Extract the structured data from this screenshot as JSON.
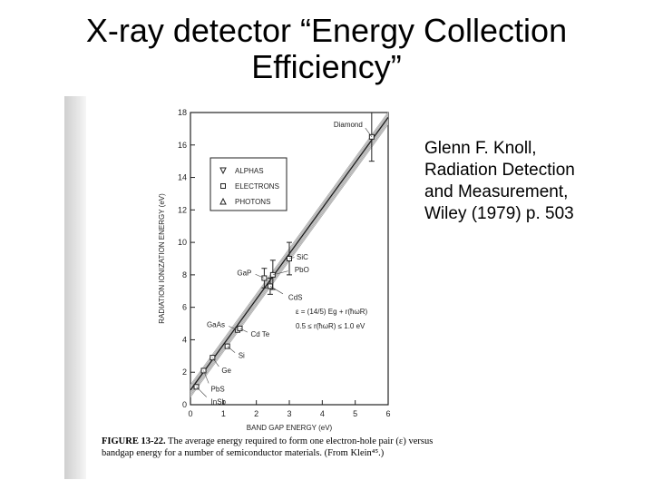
{
  "slide": {
    "title_line1": "X-ray detector “Energy Collection",
    "title_line2": "Efficiency”",
    "citation": [
      "Glenn F. Knoll,",
      "Radiation Detection",
      "and Measurement,",
      "Wiley (1979) p. 503"
    ]
  },
  "figure": {
    "label": "FIGURE 13-22.",
    "caption": "The average energy required to form one electron-hole pair (ε) versus bandgap energy for a number of semiconductor materials. (From Klein⁴⁵.)"
  },
  "chart_data": {
    "type": "scatter",
    "xlabel": "BAND GAP ENERGY (eV)",
    "ylabel": "RADIATION IONIZATION ENERGY (eV)",
    "xlim": [
      0,
      6
    ],
    "ylim": [
      0,
      18
    ],
    "xticks": [
      0,
      1,
      2,
      3,
      4,
      5,
      6
    ],
    "yticks": [
      0,
      2,
      4,
      6,
      8,
      10,
      12,
      14,
      16,
      18
    ],
    "legend": {
      "placement": "top-left",
      "entries": [
        {
          "marker": "triangle-down",
          "label": "ALPHAS"
        },
        {
          "marker": "square",
          "label": "ELECTRONS"
        },
        {
          "marker": "triangle-up",
          "label": "PHOTONS"
        }
      ]
    },
    "fit_line": {
      "x": [
        0,
        6
      ],
      "y": [
        0.9,
        17.7
      ]
    },
    "equation": [
      "ε = (14/5) Eg + r(ħωR)",
      "0.5 ≤ r(ħωR) ≤ 1.0 eV"
    ],
    "points": [
      {
        "label": "InSb",
        "x": 0.18,
        "y": 1.1,
        "err": 0
      },
      {
        "label": "PbS",
        "x": 0.4,
        "y": 2.1,
        "err": 0
      },
      {
        "label": "Ge",
        "x": 0.67,
        "y": 2.9,
        "err": 0
      },
      {
        "label": "Si",
        "x": 1.12,
        "y": 3.6,
        "err": 0
      },
      {
        "label": "GaAs",
        "x": 1.43,
        "y": 4.6,
        "err": 0
      },
      {
        "label": "Cd Te",
        "x": 1.5,
        "y": 4.7,
        "err": 0
      },
      {
        "label": "GaP",
        "x": 2.24,
        "y": 7.8,
        "err": 0.6
      },
      {
        "label": "CdS",
        "x": 2.42,
        "y": 7.3,
        "err": 0.5
      },
      {
        "label": "PbO",
        "x": 2.5,
        "y": 8.0,
        "err": 0.9
      },
      {
        "label": "SiC",
        "x": 3.0,
        "y": 9.0,
        "err": 1.0
      },
      {
        "label": "Diamond",
        "x": 5.5,
        "y": 16.5,
        "err": 1.5
      }
    ]
  }
}
